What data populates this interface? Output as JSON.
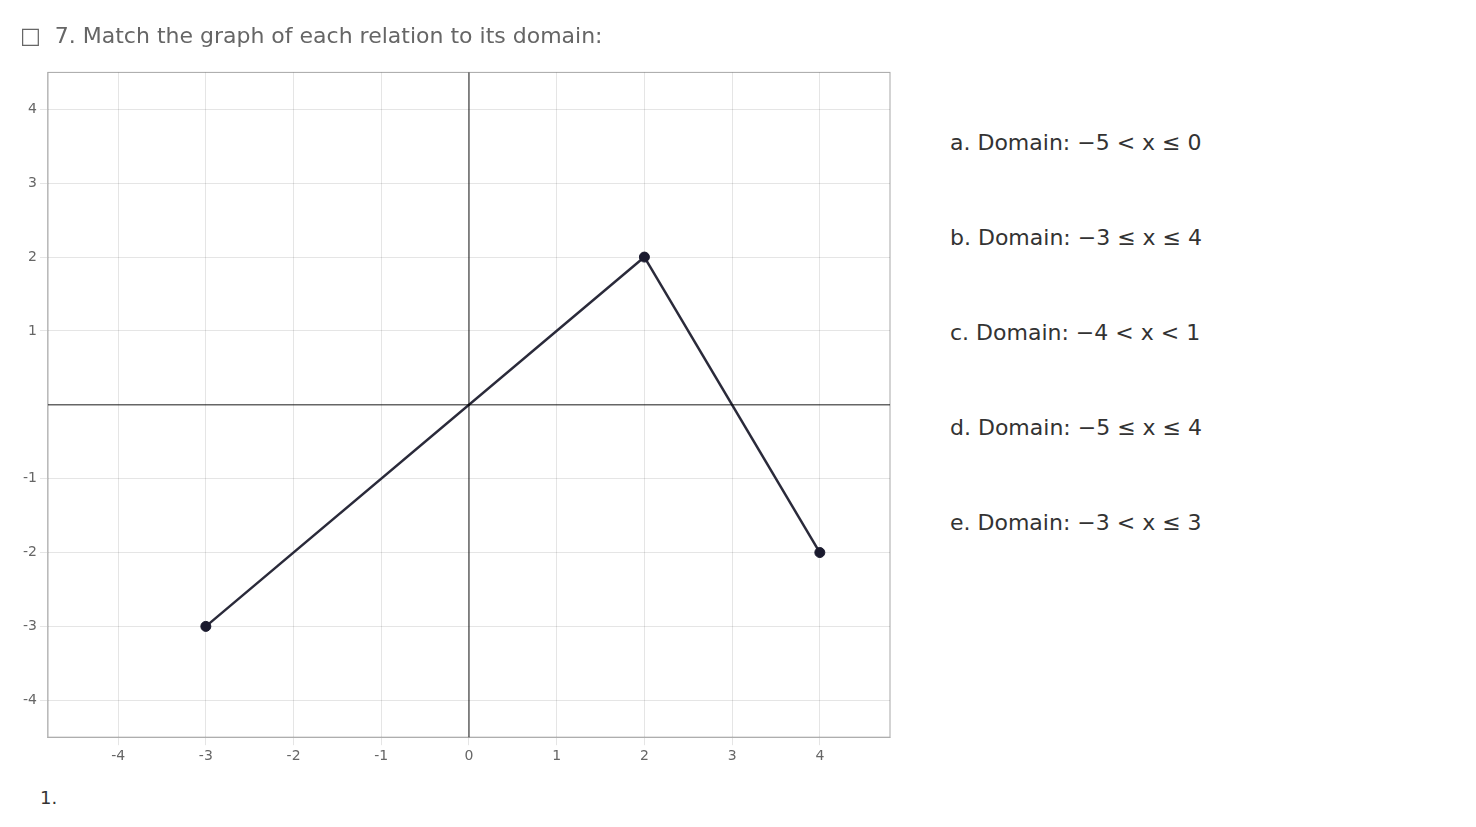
{
  "chart_data": {
    "type": "line",
    "title": "□  7. Match the graph of each relation to its domain:",
    "series": [
      {
        "type": "line",
        "x": [
          -3,
          2
        ],
        "values": [
          -3,
          2
        ],
        "color": "#2a2a3a"
      },
      {
        "type": "line",
        "x": [
          2,
          4
        ],
        "values": [
          2,
          -2
        ],
        "color": "#2a2a3a"
      },
      {
        "type": "scatter",
        "marker": "circle",
        "x": [
          -3,
          2,
          4
        ],
        "values": [
          -3,
          2,
          -2
        ],
        "color": "#1a1a2e"
      }
    ],
    "xlim": [
      -4.8,
      4.8
    ],
    "ylim": [
      -4.5,
      4.5
    ],
    "xticks": [
      -4,
      -3,
      -2,
      -1,
      0,
      1,
      2,
      3,
      4
    ],
    "yticks": [
      -4,
      -3,
      -2,
      -1,
      1,
      2,
      3,
      4
    ],
    "grid": true,
    "annotations": [
      "1.",
      "a. Domain: −5 < x ≤ 0",
      "b. Domain: −3 ≤ x ≤ 4",
      "c. Domain: −4 < x < 1",
      "d. Domain: −5 ≤ x ≤ 4",
      "e. Domain: −3 < x ≤ 3"
    ]
  }
}
